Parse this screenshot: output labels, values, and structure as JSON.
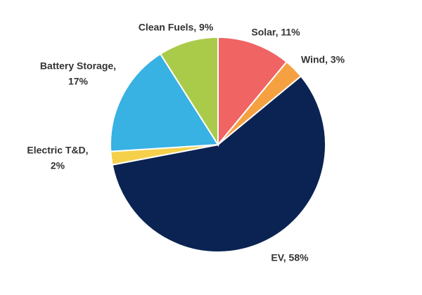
{
  "chart_data": {
    "type": "pie",
    "values": [
      11,
      3,
      58,
      2,
      17,
      9
    ],
    "value_labels": [
      [
        "Solar, 11%"
      ],
      [
        "Wind, 3%"
      ],
      [
        "EV, 58%"
      ],
      [
        "Electric T&D,",
        "2%"
      ],
      [
        "Battery Storage,",
        "17%"
      ],
      [
        "Clean Fuels, 9%"
      ]
    ],
    "colors": [
      "#f06464",
      "#f5a142",
      "#0b2352",
      "#f5d04a",
      "#38b1e3",
      "#aacb4a"
    ]
  }
}
